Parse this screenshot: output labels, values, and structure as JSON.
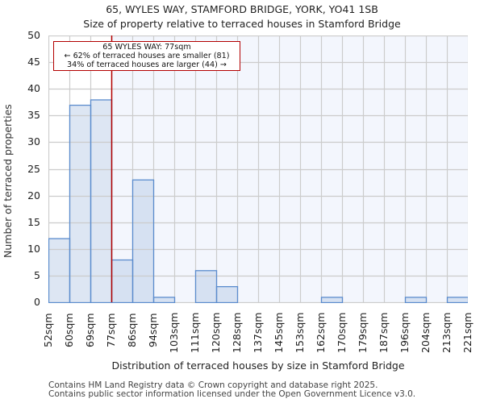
{
  "header": {
    "title": "65, WYLES WAY, STAMFORD BRIDGE, YORK, YO41 1SB",
    "subtitle": "Size of property relative to terraced houses in Stamford Bridge"
  },
  "annotation": {
    "line1": "65 WYLES WAY: 77sqm",
    "line2": "← 62% of terraced houses are smaller (81)",
    "line3": "34% of terraced houses are larger (44) →"
  },
  "footer": {
    "line1": "Contains HM Land Registry data © Crown copyright and database right 2025.",
    "line2": "Contains public sector information licensed under the Open Government Licence v3.0."
  },
  "colors": {
    "bar_fill_left": "#dde6f3",
    "bar_fill_right": "#d6e1f2",
    "bar_edge": "#5b8cce",
    "marker_line": "#b30000",
    "shade_right": "#f3f6fd",
    "grid": "#cccccc"
  },
  "chart_data": {
    "type": "bar",
    "title": "65, WYLES WAY, STAMFORD BRIDGE, YORK, YO41 1SB",
    "subtitle": "Size of property relative to terraced houses in Stamford Bridge",
    "xlabel": "Distribution of terraced houses by size in Stamford Bridge",
    "ylabel": "Number of terraced properties",
    "categories": [
      "52sqm",
      "60sqm",
      "69sqm",
      "77sqm",
      "86sqm",
      "94sqm",
      "103sqm",
      "111sqm",
      "120sqm",
      "128sqm",
      "137sqm",
      "145sqm",
      "153sqm",
      "162sqm",
      "170sqm",
      "179sqm",
      "187sqm",
      "196sqm",
      "204sqm",
      "213sqm",
      "221sqm"
    ],
    "values": [
      12,
      37,
      38,
      8,
      23,
      1,
      0,
      6,
      3,
      0,
      0,
      0,
      0,
      1,
      0,
      0,
      0,
      1,
      0,
      1
    ],
    "ylim": [
      0,
      50
    ],
    "yticks": [
      0,
      5,
      10,
      15,
      20,
      25,
      30,
      35,
      40,
      45,
      50
    ],
    "grid": true,
    "marker": {
      "label": "65 WYLES WAY: 77sqm",
      "x": "77sqm",
      "bin_index": 3
    },
    "annotations": [
      "65 WYLES WAY: 77sqm",
      "← 62% of terraced houses are smaller (81)",
      "34% of terraced houses are larger (44) →"
    ]
  }
}
